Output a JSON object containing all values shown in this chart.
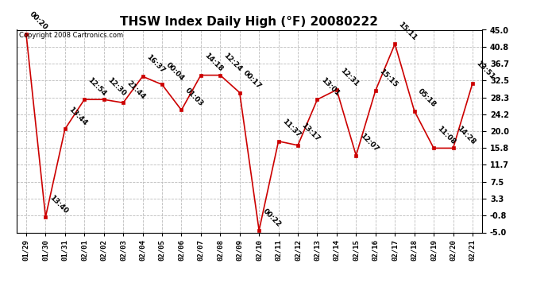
{
  "title": "THSW Index Daily High (°F) 20080222",
  "copyright": "Copyright 2008 Cartronics.com",
  "dates": [
    "01/29",
    "01/30",
    "01/31",
    "02/01",
    "02/02",
    "02/03",
    "02/04",
    "02/05",
    "02/06",
    "02/07",
    "02/08",
    "02/09",
    "02/10",
    "02/11",
    "02/12",
    "02/13",
    "02/14",
    "02/15",
    "02/16",
    "02/17",
    "02/18",
    "02/19",
    "02/20",
    "02/21"
  ],
  "values": [
    44.0,
    -1.2,
    20.5,
    27.8,
    27.8,
    27.0,
    33.5,
    31.5,
    25.2,
    33.8,
    33.8,
    29.5,
    -4.5,
    17.5,
    16.5,
    27.8,
    30.2,
    14.0,
    30.0,
    41.5,
    25.0,
    15.8,
    15.8,
    31.8
  ],
  "annotations": [
    "00:20",
    "13:40",
    "13:44",
    "12:54",
    "12:30",
    "21:44",
    "16:37",
    "00:04",
    "01:03",
    "14:18",
    "12:24",
    "00:17",
    "00:22",
    "11:37",
    "13:17",
    "13:01",
    "12:31",
    "12:07",
    "15:15",
    "15:11",
    "05:18",
    "11:08",
    "14:28",
    "13:51"
  ],
  "ylim": [
    -5.0,
    45.0
  ],
  "yticks": [
    -5.0,
    -0.8,
    3.3,
    7.5,
    11.7,
    15.8,
    20.0,
    24.2,
    28.3,
    32.5,
    36.7,
    40.8,
    45.0
  ],
  "line_color": "#cc0000",
  "marker_color": "#cc0000",
  "grid_color": "#bbbbbb",
  "bg_color": "#ffffff",
  "title_fontsize": 11,
  "annotation_fontsize": 6.5,
  "copyright_fontsize": 6,
  "tick_fontsize": 6.5
}
